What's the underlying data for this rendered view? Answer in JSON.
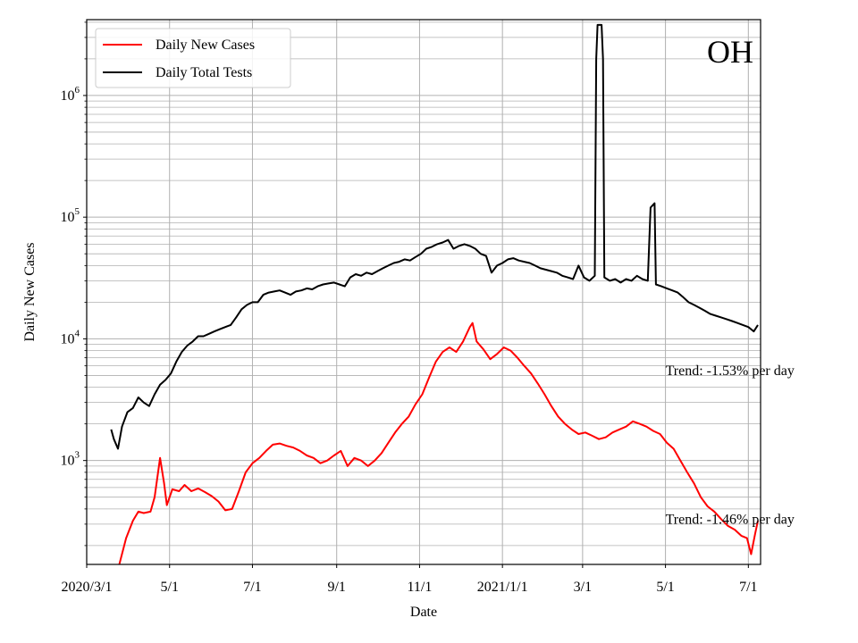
{
  "chart_data": {
    "type": "line",
    "title": "OH",
    "xlabel": "Date",
    "ylabel": "Daily New Cases",
    "y_scale": "log",
    "ylim": [
      140,
      4200000
    ],
    "xlim": [
      "2020-03-01",
      "2021-07-10"
    ],
    "grid": "both (major and minor)",
    "legend_position": "top-left",
    "x_ticks": [
      {
        "date": "2020-03-01",
        "label": "2020/3/1"
      },
      {
        "date": "2020-05-01",
        "label": "5/1"
      },
      {
        "date": "2020-07-01",
        "label": "7/1"
      },
      {
        "date": "2020-09-01",
        "label": "9/1"
      },
      {
        "date": "2020-11-01",
        "label": "11/1"
      },
      {
        "date": "2021-01-01",
        "label": "2021/1/1"
      },
      {
        "date": "2021-03-01",
        "label": "3/1"
      },
      {
        "date": "2021-05-01",
        "label": "5/1"
      },
      {
        "date": "2021-07-01",
        "label": "7/1"
      }
    ],
    "y_ticks": [
      {
        "value": 1000,
        "base": "10",
        "exp": "3"
      },
      {
        "value": 10000,
        "base": "10",
        "exp": "4"
      },
      {
        "value": 100000,
        "base": "10",
        "exp": "5"
      },
      {
        "value": 1000000,
        "base": "10",
        "exp": "6"
      }
    ],
    "annotations": [
      {
        "text": "Trend: -1.53% per day",
        "at_date": "2021-05-01",
        "at_value": 5500
      },
      {
        "text": "Trend: -1.46% per day",
        "at_date": "2021-05-01",
        "at_value": 330
      }
    ],
    "series": [
      {
        "name": "Daily New Cases",
        "color": "#ff0000",
        "points": [
          [
            "2020-03-25",
            140
          ],
          [
            "2020-03-30",
            230
          ],
          [
            "2020-04-04",
            320
          ],
          [
            "2020-04-08",
            380
          ],
          [
            "2020-04-12",
            370
          ],
          [
            "2020-04-17",
            380
          ],
          [
            "2020-04-20",
            500
          ],
          [
            "2020-04-24",
            1050
          ],
          [
            "2020-04-27",
            650
          ],
          [
            "2020-04-29",
            430
          ],
          [
            "2020-05-03",
            580
          ],
          [
            "2020-05-08",
            560
          ],
          [
            "2020-05-12",
            630
          ],
          [
            "2020-05-17",
            560
          ],
          [
            "2020-05-22",
            590
          ],
          [
            "2020-05-27",
            550
          ],
          [
            "2020-06-01",
            510
          ],
          [
            "2020-06-06",
            460
          ],
          [
            "2020-06-11",
            390
          ],
          [
            "2020-06-16",
            400
          ],
          [
            "2020-06-21",
            560
          ],
          [
            "2020-06-26",
            800
          ],
          [
            "2020-07-01",
            950
          ],
          [
            "2020-07-06",
            1050
          ],
          [
            "2020-07-11",
            1200
          ],
          [
            "2020-07-16",
            1350
          ],
          [
            "2020-07-21",
            1380
          ],
          [
            "2020-07-26",
            1320
          ],
          [
            "2020-07-31",
            1280
          ],
          [
            "2020-08-05",
            1200
          ],
          [
            "2020-08-10",
            1100
          ],
          [
            "2020-08-15",
            1050
          ],
          [
            "2020-08-20",
            950
          ],
          [
            "2020-08-25",
            1000
          ],
          [
            "2020-08-30",
            1100
          ],
          [
            "2020-09-04",
            1200
          ],
          [
            "2020-09-09",
            900
          ],
          [
            "2020-09-14",
            1050
          ],
          [
            "2020-09-19",
            1000
          ],
          [
            "2020-09-24",
            900
          ],
          [
            "2020-09-29",
            1000
          ],
          [
            "2020-10-04",
            1150
          ],
          [
            "2020-10-09",
            1400
          ],
          [
            "2020-10-14",
            1700
          ],
          [
            "2020-10-19",
            2000
          ],
          [
            "2020-10-24",
            2300
          ],
          [
            "2020-10-29",
            2900
          ],
          [
            "2020-11-03",
            3500
          ],
          [
            "2020-11-08",
            4800
          ],
          [
            "2020-11-13",
            6500
          ],
          [
            "2020-11-18",
            7800
          ],
          [
            "2020-11-23",
            8500
          ],
          [
            "2020-11-28",
            7800
          ],
          [
            "2020-12-03",
            9500
          ],
          [
            "2020-12-08",
            12500
          ],
          [
            "2020-12-10",
            13500
          ],
          [
            "2020-12-13",
            9500
          ],
          [
            "2020-12-18",
            8200
          ],
          [
            "2020-12-23",
            6800
          ],
          [
            "2020-12-28",
            7500
          ],
          [
            "2021-01-02",
            8500
          ],
          [
            "2021-01-07",
            8000
          ],
          [
            "2021-01-12",
            7000
          ],
          [
            "2021-01-17",
            6000
          ],
          [
            "2021-01-22",
            5200
          ],
          [
            "2021-01-27",
            4300
          ],
          [
            "2021-02-01",
            3500
          ],
          [
            "2021-02-06",
            2800
          ],
          [
            "2021-02-11",
            2300
          ],
          [
            "2021-02-16",
            2000
          ],
          [
            "2021-02-21",
            1800
          ],
          [
            "2021-02-26",
            1650
          ],
          [
            "2021-03-03",
            1700
          ],
          [
            "2021-03-08",
            1600
          ],
          [
            "2021-03-13",
            1500
          ],
          [
            "2021-03-18",
            1550
          ],
          [
            "2021-03-23",
            1700
          ],
          [
            "2021-03-28",
            1800
          ],
          [
            "2021-04-02",
            1900
          ],
          [
            "2021-04-07",
            2100
          ],
          [
            "2021-04-12",
            2000
          ],
          [
            "2021-04-17",
            1900
          ],
          [
            "2021-04-22",
            1750
          ],
          [
            "2021-04-27",
            1650
          ],
          [
            "2021-05-02",
            1400
          ],
          [
            "2021-05-07",
            1250
          ],
          [
            "2021-05-12",
            1000
          ],
          [
            "2021-05-17",
            800
          ],
          [
            "2021-05-22",
            650
          ],
          [
            "2021-05-27",
            500
          ],
          [
            "2021-06-01",
            420
          ],
          [
            "2021-06-06",
            380
          ],
          [
            "2021-06-11",
            330
          ],
          [
            "2021-06-16",
            290
          ],
          [
            "2021-06-21",
            270
          ],
          [
            "2021-06-26",
            240
          ],
          [
            "2021-06-30",
            230
          ],
          [
            "2021-07-03",
            170
          ],
          [
            "2021-07-06",
            250
          ],
          [
            "2021-07-08",
            320
          ]
        ]
      },
      {
        "name": "Daily Total Tests",
        "color": "#000000",
        "points": [
          [
            "2020-03-19",
            1800
          ],
          [
            "2020-03-21",
            1500
          ],
          [
            "2020-03-24",
            1250
          ],
          [
            "2020-03-27",
            1900
          ],
          [
            "2020-03-31",
            2500
          ],
          [
            "2020-04-04",
            2700
          ],
          [
            "2020-04-08",
            3300
          ],
          [
            "2020-04-12",
            3000
          ],
          [
            "2020-04-16",
            2800
          ],
          [
            "2020-04-20",
            3500
          ],
          [
            "2020-04-24",
            4200
          ],
          [
            "2020-04-28",
            4600
          ],
          [
            "2020-05-02",
            5200
          ],
          [
            "2020-05-06",
            6500
          ],
          [
            "2020-05-10",
            7800
          ],
          [
            "2020-05-14",
            8800
          ],
          [
            "2020-05-18",
            9500
          ],
          [
            "2020-05-22",
            10500
          ],
          [
            "2020-05-26",
            10500
          ],
          [
            "2020-05-30",
            11000
          ],
          [
            "2020-06-03",
            11500
          ],
          [
            "2020-06-07",
            12000
          ],
          [
            "2020-06-11",
            12500
          ],
          [
            "2020-06-15",
            13000
          ],
          [
            "2020-06-19",
            15000
          ],
          [
            "2020-06-23",
            17500
          ],
          [
            "2020-06-27",
            19000
          ],
          [
            "2020-07-01",
            20000
          ],
          [
            "2020-07-05",
            20000
          ],
          [
            "2020-07-09",
            23000
          ],
          [
            "2020-07-13",
            24000
          ],
          [
            "2020-07-17",
            24500
          ],
          [
            "2020-07-21",
            25000
          ],
          [
            "2020-07-25",
            24000
          ],
          [
            "2020-07-29",
            23000
          ],
          [
            "2020-08-02",
            24500
          ],
          [
            "2020-08-06",
            25000
          ],
          [
            "2020-08-10",
            26000
          ],
          [
            "2020-08-14",
            25500
          ],
          [
            "2020-08-18",
            27000
          ],
          [
            "2020-08-22",
            28000
          ],
          [
            "2020-08-26",
            28500
          ],
          [
            "2020-08-30",
            29000
          ],
          [
            "2020-09-03",
            28000
          ],
          [
            "2020-09-07",
            27000
          ],
          [
            "2020-09-11",
            32000
          ],
          [
            "2020-09-15",
            34000
          ],
          [
            "2020-09-19",
            33000
          ],
          [
            "2020-09-23",
            35000
          ],
          [
            "2020-09-27",
            34000
          ],
          [
            "2020-10-01",
            36000
          ],
          [
            "2020-10-05",
            38000
          ],
          [
            "2020-10-09",
            40000
          ],
          [
            "2020-10-13",
            42000
          ],
          [
            "2020-10-17",
            43000
          ],
          [
            "2020-10-21",
            45000
          ],
          [
            "2020-10-25",
            44000
          ],
          [
            "2020-10-29",
            47000
          ],
          [
            "2020-11-02",
            50000
          ],
          [
            "2020-11-06",
            55000
          ],
          [
            "2020-11-10",
            57000
          ],
          [
            "2020-11-14",
            60000
          ],
          [
            "2020-11-18",
            62000
          ],
          [
            "2020-11-22",
            65000
          ],
          [
            "2020-11-26",
            55000
          ],
          [
            "2020-11-30",
            58000
          ],
          [
            "2020-12-04",
            60000
          ],
          [
            "2020-12-08",
            58000
          ],
          [
            "2020-12-12",
            55000
          ],
          [
            "2020-12-16",
            50000
          ],
          [
            "2020-12-20",
            48000
          ],
          [
            "2020-12-24",
            35000
          ],
          [
            "2020-12-28",
            40000
          ],
          [
            "2021-01-01",
            42000
          ],
          [
            "2021-01-05",
            45000
          ],
          [
            "2021-01-09",
            46000
          ],
          [
            "2021-01-13",
            44000
          ],
          [
            "2021-01-17",
            43000
          ],
          [
            "2021-01-21",
            42000
          ],
          [
            "2021-01-25",
            40000
          ],
          [
            "2021-01-29",
            38000
          ],
          [
            "2021-02-02",
            37000
          ],
          [
            "2021-02-06",
            36000
          ],
          [
            "2021-02-10",
            35000
          ],
          [
            "2021-02-14",
            33000
          ],
          [
            "2021-02-18",
            32000
          ],
          [
            "2021-02-22",
            31000
          ],
          [
            "2021-02-26",
            40000
          ],
          [
            "2021-03-02",
            32000
          ],
          [
            "2021-03-06",
            30000
          ],
          [
            "2021-03-10",
            33000
          ],
          [
            "2021-03-11",
            2000000
          ],
          [
            "2021-03-12",
            3800000
          ],
          [
            "2021-03-15",
            3800000
          ],
          [
            "2021-03-16",
            2000000
          ],
          [
            "2021-03-17",
            32000
          ],
          [
            "2021-03-21",
            30000
          ],
          [
            "2021-03-25",
            31000
          ],
          [
            "2021-03-29",
            29000
          ],
          [
            "2021-04-02",
            31000
          ],
          [
            "2021-04-06",
            30000
          ],
          [
            "2021-04-10",
            33000
          ],
          [
            "2021-04-14",
            31000
          ],
          [
            "2021-04-18",
            30000
          ],
          [
            "2021-04-20",
            120000
          ],
          [
            "2021-04-23",
            130000
          ],
          [
            "2021-04-24",
            28000
          ],
          [
            "2021-04-28",
            27000
          ],
          [
            "2021-05-02",
            26000
          ],
          [
            "2021-05-06",
            25000
          ],
          [
            "2021-05-10",
            24000
          ],
          [
            "2021-05-14",
            22000
          ],
          [
            "2021-05-18",
            20000
          ],
          [
            "2021-05-22",
            19000
          ],
          [
            "2021-05-26",
            18000
          ],
          [
            "2021-05-30",
            17000
          ],
          [
            "2021-06-03",
            16000
          ],
          [
            "2021-06-07",
            15500
          ],
          [
            "2021-06-11",
            15000
          ],
          [
            "2021-06-15",
            14500
          ],
          [
            "2021-06-19",
            14000
          ],
          [
            "2021-06-23",
            13500
          ],
          [
            "2021-06-27",
            13000
          ],
          [
            "2021-07-01",
            12500
          ],
          [
            "2021-07-05",
            11500
          ],
          [
            "2021-07-08",
            13000
          ]
        ]
      }
    ]
  }
}
